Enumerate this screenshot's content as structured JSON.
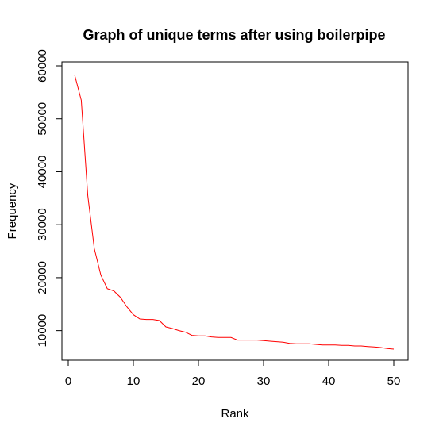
{
  "chart_data": {
    "type": "line",
    "title": "Graph of unique terms after using boilerpipe",
    "xlabel": "Rank",
    "ylabel": "Frequency",
    "xlim": [
      0,
      50
    ],
    "ylim": [
      5000,
      60000
    ],
    "x_ticks": [
      0,
      10,
      20,
      30,
      40,
      50
    ],
    "y_ticks": [
      10000,
      20000,
      30000,
      40000,
      50000,
      60000
    ],
    "x_tick_labels": [
      "0",
      "10",
      "20",
      "30",
      "40",
      "50"
    ],
    "y_tick_labels": [
      "10000",
      "20000",
      "30000",
      "40000",
      "50000",
      "60000"
    ],
    "grid": false,
    "series": [
      {
        "color": "#ff0000",
        "x": [
          1,
          2,
          3,
          4,
          5,
          6,
          7,
          8,
          9,
          10,
          11,
          12,
          13,
          14,
          15,
          16,
          17,
          18,
          19,
          20,
          21,
          22,
          23,
          24,
          25,
          26,
          27,
          28,
          29,
          30,
          31,
          32,
          33,
          34,
          35,
          36,
          37,
          38,
          39,
          40,
          41,
          42,
          43,
          44,
          45,
          46,
          47,
          48,
          49,
          50
        ],
        "values": [
          58200,
          53500,
          35500,
          25500,
          20500,
          17900,
          17500,
          16300,
          14500,
          13000,
          12200,
          12100,
          12100,
          11900,
          10700,
          10400,
          10000,
          9700,
          9100,
          9000,
          9000,
          8800,
          8700,
          8700,
          8700,
          8200,
          8200,
          8200,
          8200,
          8100,
          8000,
          7900,
          7800,
          7600,
          7500,
          7500,
          7500,
          7400,
          7300,
          7300,
          7300,
          7200,
          7200,
          7100,
          7100,
          7000,
          6900,
          6800,
          6600,
          6500
        ]
      }
    ]
  }
}
